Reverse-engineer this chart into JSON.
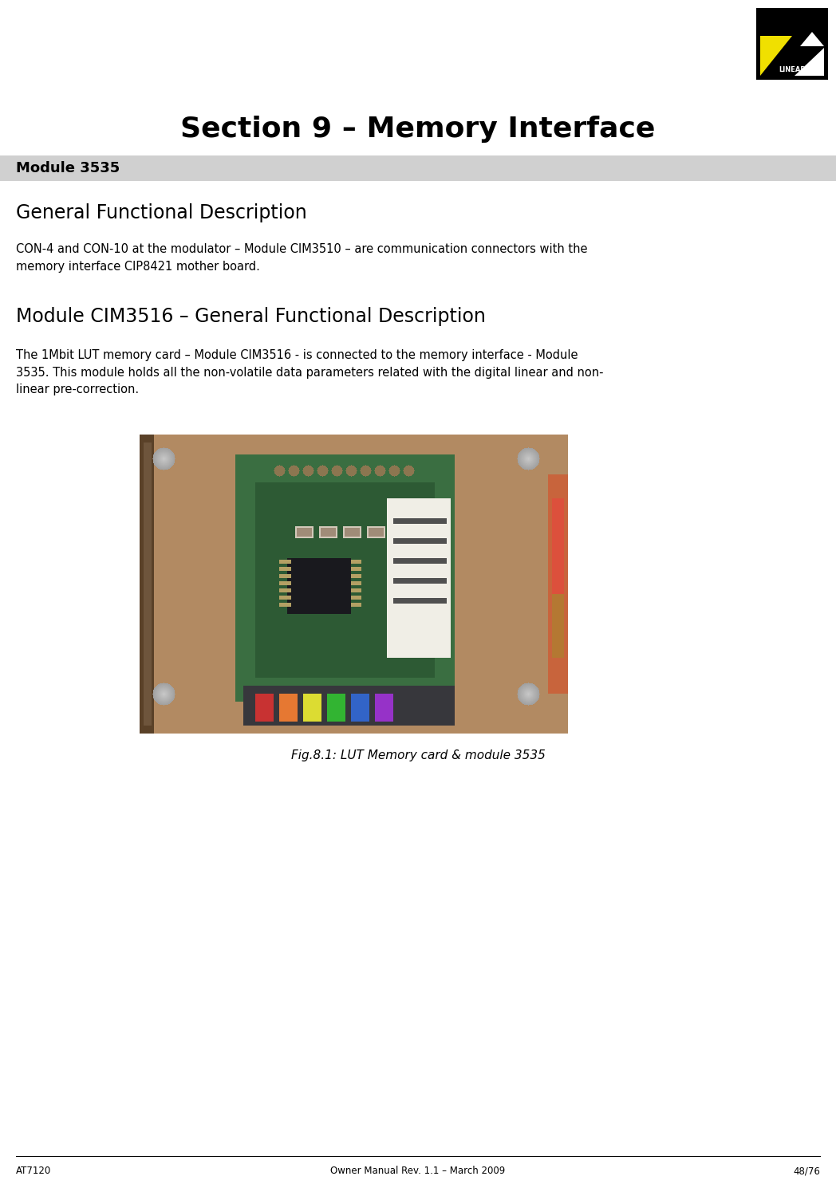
{
  "page_width": 10.48,
  "page_height": 14.9,
  "bg_color": "#ffffff",
  "title": "Section 9 – Memory Interface",
  "title_fontsize": 26,
  "module_header": "Module 3535",
  "module_header_bg": "#d0d0d0",
  "module_header_fontsize": 13,
  "section1_heading": "General Functional Description",
  "section1_heading_fontsize": 17,
  "section1_body": "CON-4 and CON-10 at the modulator – Module CIM3510 – are communication connectors with the\nmemory interface CIP8421 mother board.",
  "section1_body_fontsize": 10.5,
  "section2_heading": "Module CIM3516 – General Functional Description",
  "section2_heading_fontsize": 17,
  "section2_body": "The 1Mbit LUT memory card – Module CIM3516 - is connected to the memory interface - Module\n3535. This module holds all the non-volatile data parameters related with the digital linear and non-\nlinear pre-correction.",
  "section2_body_fontsize": 10.5,
  "image_caption": "Fig.8.1: LUT Memory card & module 3535",
  "image_caption_fontsize": 11,
  "footer_left": "AT7120",
  "footer_center": "Owner Manual Rev. 1.1 – March 2009",
  "footer_right": "48/76",
  "footer_fontsize": 8.5
}
